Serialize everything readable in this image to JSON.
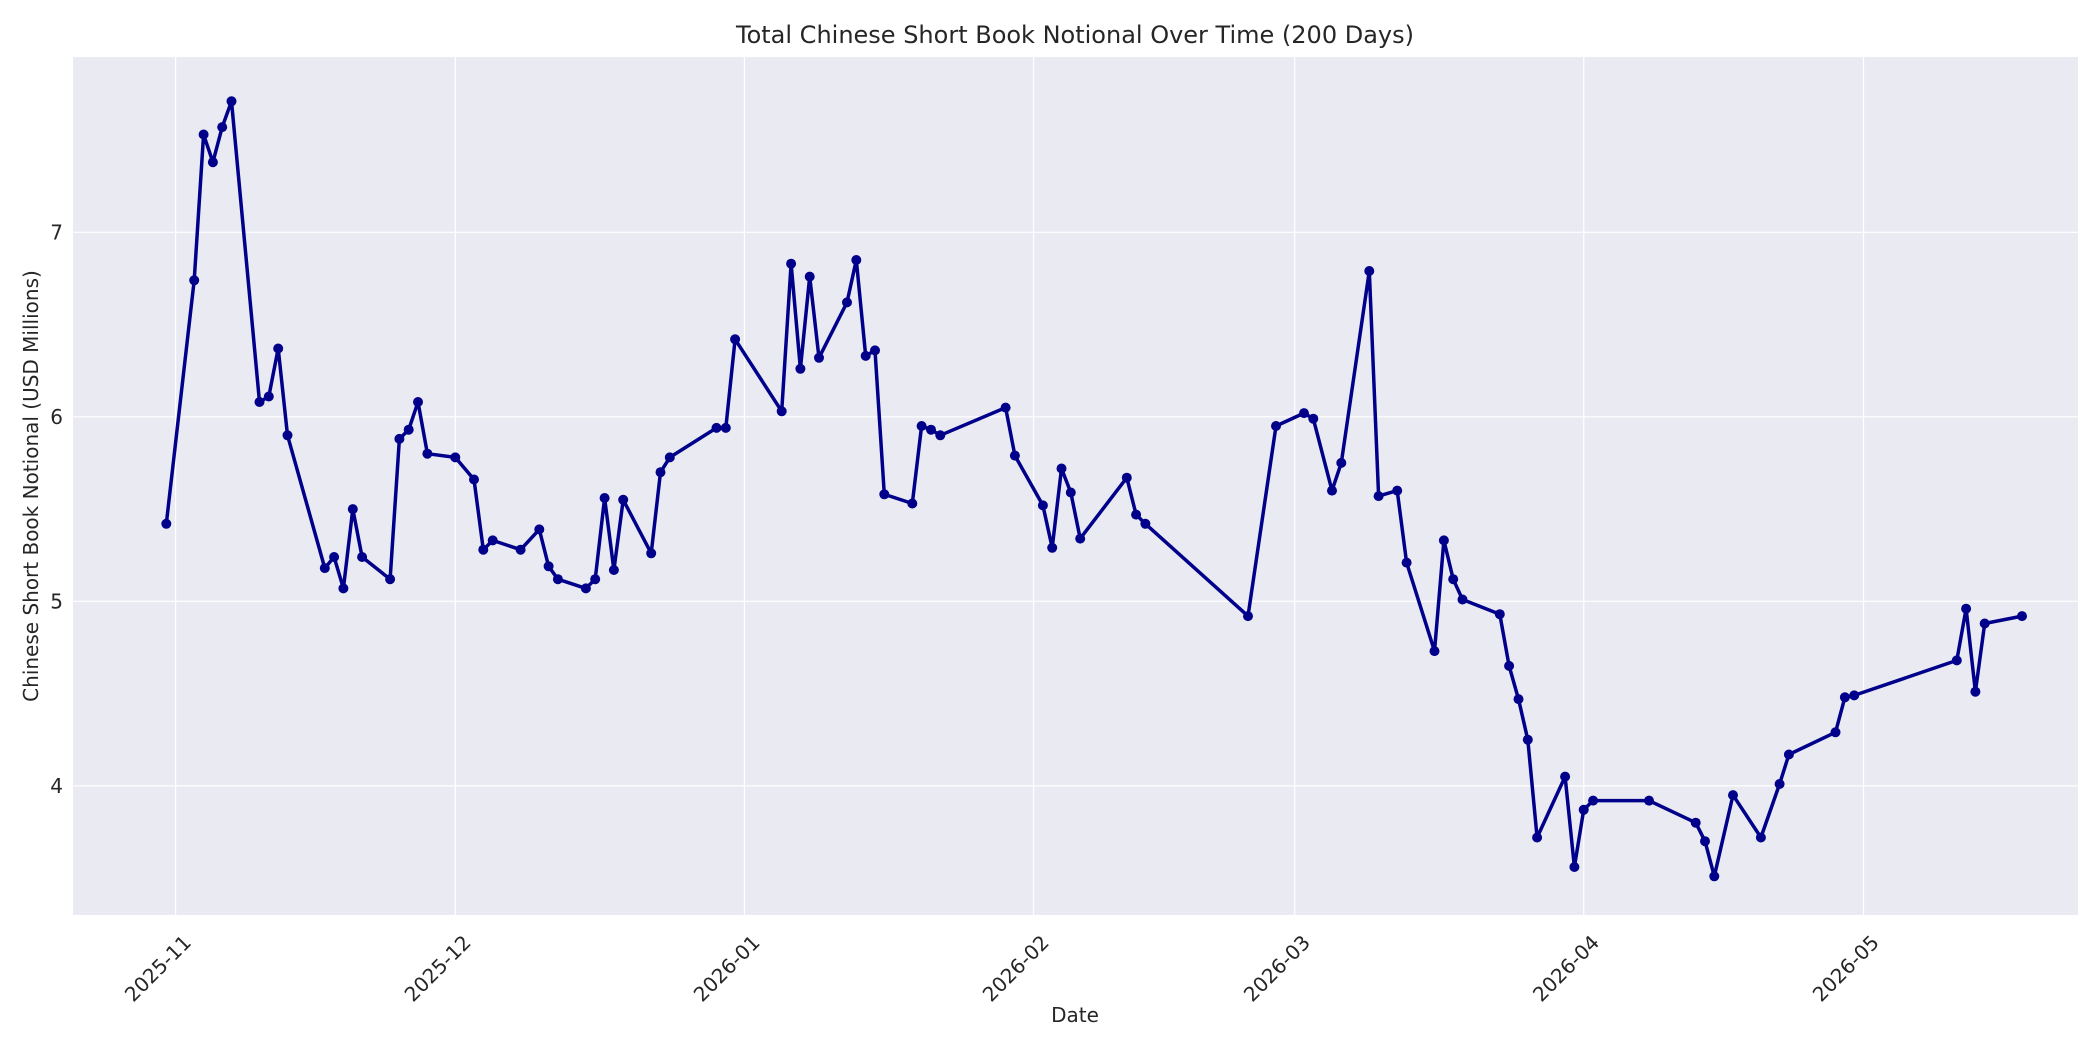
{
  "chart_data": {
    "type": "line",
    "title": "Total Chinese Short Book Notional Over Time (200 Days)",
    "xlabel": "Date",
    "ylabel": "Chinese Short Book Notional (USD Millions)",
    "x_range": [
      "2025-10-21",
      "2026-05-24"
    ],
    "ylim": [
      3.3,
      7.95
    ],
    "x_ticks": [
      "2025-11-01",
      "2025-12-01",
      "2026-01-01",
      "2026-02-01",
      "2026-03-01",
      "2026-04-01",
      "2026-05-01"
    ],
    "x_tick_labels": [
      "2025-11",
      "2025-12",
      "2026-01",
      "2026-02",
      "2026-03",
      "2026-04",
      "2026-05"
    ],
    "y_ticks": [
      4,
      5,
      6,
      7
    ],
    "y_tick_labels": [
      "4",
      "5",
      "6",
      "7"
    ],
    "grid": true,
    "line_color": "#00008b",
    "background_color": "#eaeaf2",
    "series": [
      {
        "points": [
          [
            "2025-10-31",
            5.42
          ],
          [
            "2025-11-03",
            6.74
          ],
          [
            "2025-11-04",
            7.53
          ],
          [
            "2025-11-05",
            7.38
          ],
          [
            "2025-11-06",
            7.57
          ],
          [
            "2025-11-07",
            7.71
          ],
          [
            "2025-11-10",
            6.08
          ],
          [
            "2025-11-11",
            6.11
          ],
          [
            "2025-11-12",
            6.37
          ],
          [
            "2025-11-13",
            5.9
          ],
          [
            "2025-11-17",
            5.18
          ],
          [
            "2025-11-18",
            5.24
          ],
          [
            "2025-11-19",
            5.07
          ],
          [
            "2025-11-20",
            5.5
          ],
          [
            "2025-11-21",
            5.24
          ],
          [
            "2025-11-24",
            5.12
          ],
          [
            "2025-11-25",
            5.88
          ],
          [
            "2025-11-26",
            5.93
          ],
          [
            "2025-11-27",
            6.08
          ],
          [
            "2025-11-28",
            5.8
          ],
          [
            "2025-12-01",
            5.78
          ],
          [
            "2025-12-03",
            5.66
          ],
          [
            "2025-12-04",
            5.28
          ],
          [
            "2025-12-05",
            5.33
          ],
          [
            "2025-12-08",
            5.28
          ],
          [
            "2025-12-10",
            5.39
          ],
          [
            "2025-12-11",
            5.19
          ],
          [
            "2025-12-12",
            5.12
          ],
          [
            "2025-12-15",
            5.07
          ],
          [
            "2025-12-16",
            5.12
          ],
          [
            "2025-12-17",
            5.56
          ],
          [
            "2025-12-18",
            5.17
          ],
          [
            "2025-12-19",
            5.55
          ],
          [
            "2025-12-22",
            5.26
          ],
          [
            "2025-12-23",
            5.7
          ],
          [
            "2025-12-24",
            5.78
          ],
          [
            "2025-12-29",
            5.94
          ],
          [
            "2025-12-30",
            5.94
          ],
          [
            "2025-12-31",
            6.42
          ],
          [
            "2026-01-05",
            6.03
          ],
          [
            "2026-01-06",
            6.83
          ],
          [
            "2026-01-07",
            6.26
          ],
          [
            "2026-01-08",
            6.76
          ],
          [
            "2026-01-09",
            6.32
          ],
          [
            "2026-01-12",
            6.62
          ],
          [
            "2026-01-13",
            6.85
          ],
          [
            "2026-01-14",
            6.33
          ],
          [
            "2026-01-15",
            6.36
          ],
          [
            "2026-01-16",
            5.58
          ],
          [
            "2026-01-19",
            5.53
          ],
          [
            "2026-01-20",
            5.95
          ],
          [
            "2026-01-21",
            5.93
          ],
          [
            "2026-01-22",
            5.9
          ],
          [
            "2026-01-29",
            6.05
          ],
          [
            "2026-01-30",
            5.79
          ],
          [
            "2026-02-02",
            5.52
          ],
          [
            "2026-02-03",
            5.29
          ],
          [
            "2026-02-04",
            5.72
          ],
          [
            "2026-02-05",
            5.59
          ],
          [
            "2026-02-06",
            5.34
          ],
          [
            "2026-02-11",
            5.67
          ],
          [
            "2026-02-12",
            5.47
          ],
          [
            "2026-02-13",
            5.42
          ],
          [
            "2026-02-24",
            4.92
          ],
          [
            "2026-02-27",
            5.95
          ],
          [
            "2026-03-02",
            6.02
          ],
          [
            "2026-03-03",
            5.99
          ],
          [
            "2026-03-05",
            5.6
          ],
          [
            "2026-03-06",
            5.75
          ],
          [
            "2026-03-09",
            6.79
          ],
          [
            "2026-03-10",
            5.57
          ],
          [
            "2026-03-12",
            5.6
          ],
          [
            "2026-03-13",
            5.21
          ],
          [
            "2026-03-16",
            4.73
          ],
          [
            "2026-03-17",
            5.33
          ],
          [
            "2026-03-18",
            5.12
          ],
          [
            "2026-03-19",
            5.01
          ],
          [
            "2026-03-23",
            4.93
          ],
          [
            "2026-03-24",
            4.65
          ],
          [
            "2026-03-25",
            4.47
          ],
          [
            "2026-03-26",
            4.25
          ],
          [
            "2026-03-27",
            3.72
          ],
          [
            "2026-03-30",
            4.05
          ],
          [
            "2026-03-31",
            3.56
          ],
          [
            "2026-04-01",
            3.87
          ],
          [
            "2026-04-02",
            3.92
          ],
          [
            "2026-04-08",
            3.92
          ],
          [
            "2026-04-13",
            3.8
          ],
          [
            "2026-04-14",
            3.7
          ],
          [
            "2026-04-15",
            3.51
          ],
          [
            "2026-04-17",
            3.95
          ],
          [
            "2026-04-20",
            3.72
          ],
          [
            "2026-04-22",
            4.01
          ],
          [
            "2026-04-23",
            4.17
          ],
          [
            "2026-04-28",
            4.29
          ],
          [
            "2026-04-29",
            4.48
          ],
          [
            "2026-04-30",
            4.49
          ],
          [
            "2026-05-11",
            4.68
          ],
          [
            "2026-05-12",
            4.96
          ],
          [
            "2026-05-13",
            4.51
          ],
          [
            "2026-05-14",
            4.88
          ],
          [
            "2026-05-18",
            4.92
          ]
        ]
      }
    ]
  }
}
